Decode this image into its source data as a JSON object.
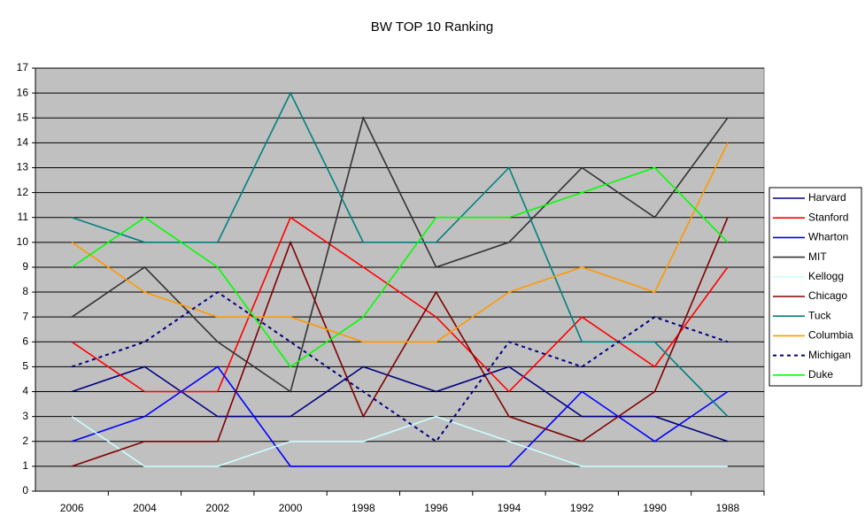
{
  "chart_data": {
    "type": "line",
    "title": "BW TOP 10 Ranking",
    "categories": [
      "2006",
      "2004",
      "2002",
      "2000",
      "1998",
      "1996",
      "1994",
      "1992",
      "1990",
      "1988"
    ],
    "ylim": [
      0,
      17
    ],
    "yticks": [
      0,
      1,
      2,
      3,
      4,
      5,
      6,
      7,
      8,
      9,
      10,
      11,
      12,
      13,
      14,
      15,
      16,
      17
    ],
    "grid": true,
    "legend": "right",
    "series": [
      {
        "name": "Harvard",
        "color": "#000080",
        "values": [
          4,
          5,
          3,
          3,
          5,
          4,
          5,
          3,
          3,
          2
        ]
      },
      {
        "name": "Stanford",
        "color": "#ff0000",
        "values": [
          6,
          4,
          4,
          11,
          9,
          7,
          4,
          7,
          5,
          9
        ]
      },
      {
        "name": "Wharton",
        "color": "#0000ff",
        "values": [
          2,
          3,
          5,
          1,
          1,
          1,
          1,
          4,
          2,
          4
        ]
      },
      {
        "name": "MIT",
        "color": "#333333",
        "values": [
          7,
          9,
          6,
          4,
          15,
          9,
          10,
          13,
          11,
          15
        ]
      },
      {
        "name": "Kellogg",
        "color": "#ccffff",
        "values": [
          3,
          1,
          1,
          2,
          2,
          3,
          2,
          1,
          1,
          1
        ]
      },
      {
        "name": "Chicago",
        "color": "#800000",
        "values": [
          1,
          2,
          2,
          10,
          3,
          8,
          3,
          2,
          4,
          11
        ]
      },
      {
        "name": "Tuck",
        "color": "#008080",
        "values": [
          11,
          10,
          10,
          16,
          10,
          10,
          13,
          6,
          6,
          3
        ]
      },
      {
        "name": "Columbia",
        "color": "#ff9900",
        "values": [
          10,
          8,
          7,
          7,
          6,
          6,
          8,
          9,
          8,
          14
        ]
      },
      {
        "name": "Michigan",
        "color": "#000080",
        "dashed": true,
        "values": [
          5,
          6,
          8,
          6,
          4,
          2,
          6,
          5,
          7,
          6
        ]
      },
      {
        "name": "Duke",
        "color": "#00ff00",
        "values": [
          9,
          11,
          9,
          5,
          7,
          11,
          11,
          12,
          13,
          10
        ]
      }
    ]
  }
}
